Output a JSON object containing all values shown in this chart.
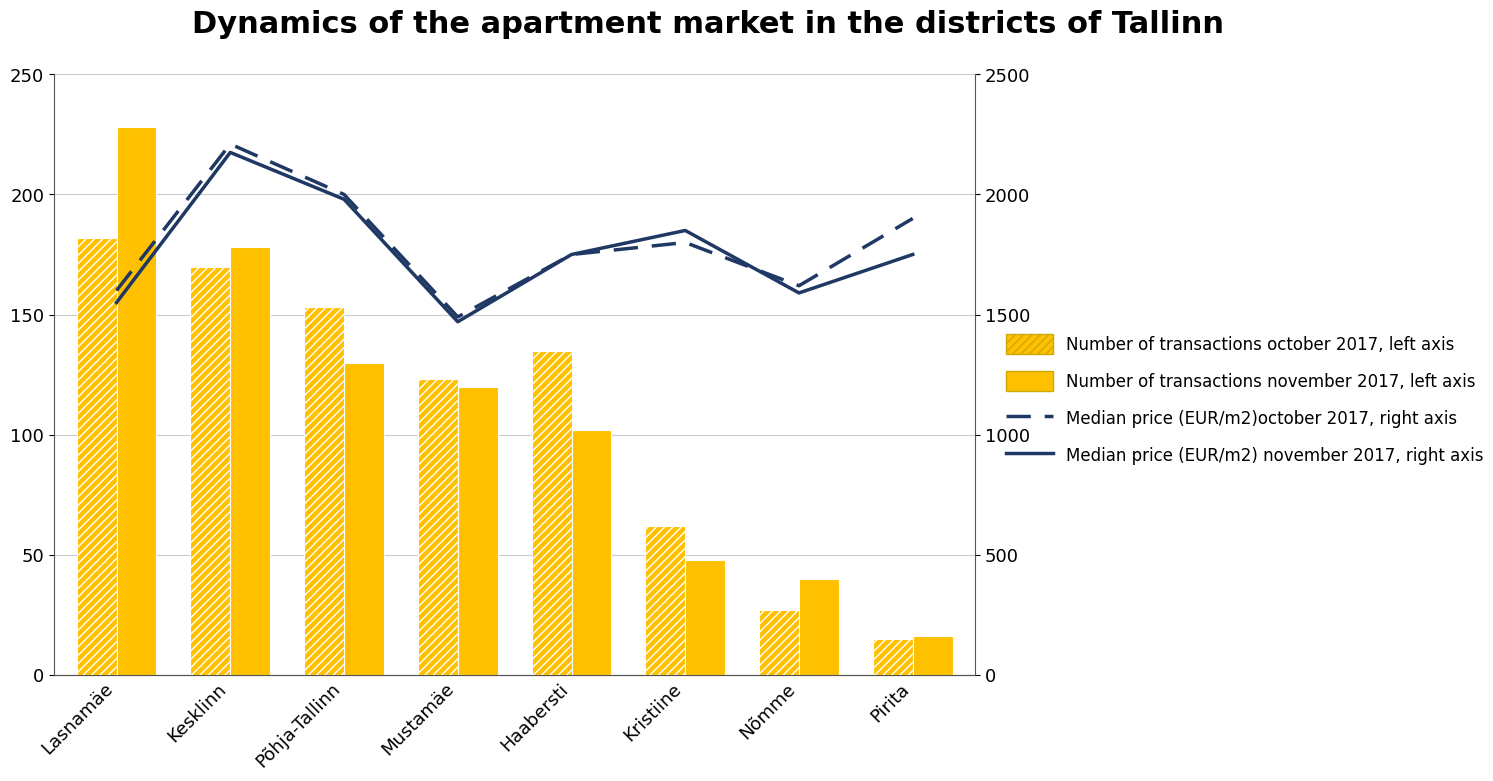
{
  "title": "Dynamics of the apartment market in the districts of Tallinn",
  "categories": [
    "Lasnamäe",
    "Kesklinn",
    "Põhja-Tallinn",
    "Mustamäe",
    "Haabersti",
    "Kristiine",
    "Nõmme",
    "Pirita"
  ],
  "transactions_oct": [
    182,
    170,
    153,
    123,
    135,
    62,
    27,
    15
  ],
  "transactions_nov": [
    228,
    178,
    130,
    120,
    102,
    48,
    40,
    16
  ],
  "median_price_oct": [
    1600,
    2210,
    2000,
    1490,
    1750,
    1800,
    1620,
    1900
  ],
  "median_price_nov": [
    1550,
    2175,
    1980,
    1470,
    1750,
    1850,
    1590,
    1750
  ],
  "bar_color": "#FFC000",
  "line_color": "#1F3864",
  "left_ylim": [
    0,
    250
  ],
  "right_ylim": [
    0,
    2500
  ],
  "left_yticks": [
    0,
    50,
    100,
    150,
    200,
    250
  ],
  "right_yticks": [
    0,
    500,
    1000,
    1500,
    2000,
    2500
  ],
  "title_fontsize": 22,
  "axis_fontsize": 13,
  "legend_fontsize": 12,
  "legend_labels": [
    "Number of transactions october 2017, left axis",
    "Number of transactions november 2017, left axis",
    "Median price (EUR/m2)october 2017, right axis",
    "Median price (EUR/m2) november 2017, right axis"
  ],
  "bar_width": 0.35,
  "background_color": "#ffffff"
}
